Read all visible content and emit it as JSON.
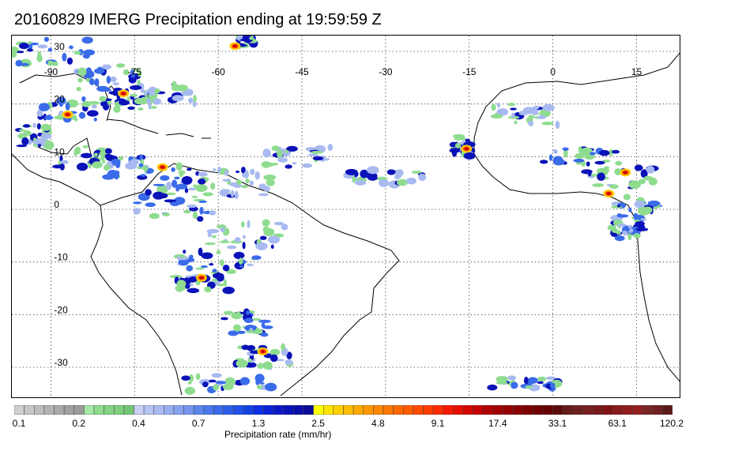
{
  "title": "20160829 IMERG Precipitation ending at 19:59:59 Z",
  "map": {
    "lon_labels": [
      "-90",
      "-75",
      "-60",
      "-45",
      "-30",
      "-15",
      "0",
      "15"
    ],
    "lat_labels": [
      "30",
      "20",
      "10",
      "0",
      "-10",
      "-20",
      "-30"
    ],
    "lon_values": [
      -90,
      -75,
      -60,
      -45,
      -30,
      -15,
      0,
      15
    ],
    "lat_values": [
      30,
      20,
      10,
      0,
      -10,
      -20,
      -30
    ],
    "lon_range": [
      -97,
      23
    ],
    "lat_range": [
      -36,
      33
    ],
    "gridlines": "dotted",
    "land_outline_color": "#000000"
  },
  "colorbar": {
    "label": "Precipitation rate (mm/hr)",
    "tick_labels": [
      "0.1",
      "0.2",
      "0.4",
      "0.7",
      "1.3",
      "2.5",
      "4.8",
      "9.1",
      "17.4",
      "33.1",
      "63.1",
      "120.2"
    ],
    "bins_per_tick_interval": 6,
    "colors": [
      "#cfcfcf",
      "#c6c6c6",
      "#bdbdbd",
      "#b3b3b3",
      "#aaaaaa",
      "#a0a0a0",
      "#9a9a9a",
      "#a8e8a8",
      "#8fdc8f",
      "#84d484",
      "#7fcf7f",
      "#73c673",
      "#c8d0f4",
      "#b8c4f2",
      "#a8baf0",
      "#98aff0",
      "#86a3ee",
      "#7596ec",
      "#5c86ec",
      "#4a78ec",
      "#3a6be9",
      "#2c5ee8",
      "#1f4fe6",
      "#1143e3",
      "#0d2ee5",
      "#0b22d8",
      "#0a18c6",
      "#0a12b8",
      "#0a0ea8",
      "#0a0a98",
      "#ffff00",
      "#ffe600",
      "#ffd000",
      "#ffbd00",
      "#ffaa00",
      "#ff9800",
      "#ff8700",
      "#ff7800",
      "#ff6a00",
      "#ff5c00",
      "#ff4c00",
      "#ff3c00",
      "#ff2a00",
      "#f51800",
      "#e80e00",
      "#d40800",
      "#c40000",
      "#b00000",
      "#a00000",
      "#940000",
      "#880000",
      "#7c0000",
      "#700000",
      "#640000",
      "#5c0a0a",
      "#661a1a",
      "#6e1f1f",
      "#761f1f",
      "#7a1a1a",
      "#801414",
      "#8a1a1a",
      "#901c1c",
      "#942020",
      "#7a2525",
      "#702020",
      "#5a1a1a"
    ]
  },
  "precip_palette": {
    "light": "#8fdc8f",
    "low": "#a8baf0",
    "mid": "#3a6be9",
    "high": "#0a12b8",
    "heavy": "#ffd000",
    "intense": "#ff4c00",
    "extreme": "#c40000"
  }
}
